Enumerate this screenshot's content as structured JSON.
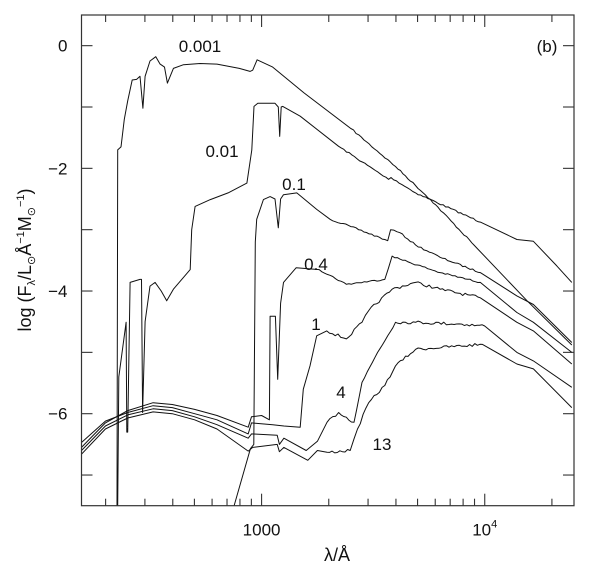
{
  "chart_data": {
    "type": "line",
    "panel_label": "(b)",
    "xlabel": "λ/Å",
    "ylabel": {
      "prefix": "log (F",
      "sub1": "λ",
      "mid1": "/L",
      "sun1": "⊙",
      "mid2": "Å",
      "sup1": "−1",
      "mid3": "M",
      "sun2": "⊙",
      "sup2": "−1",
      "suffix": ")"
    },
    "x_scale": "log",
    "xlim_log10": [
      2.193,
      4.4
    ],
    "ylim": [
      -7.5,
      0.5
    ],
    "grid": false,
    "yticks": [
      {
        "value": 0,
        "label": "0"
      },
      {
        "value": -2,
        "label": "−2"
      },
      {
        "value": -4,
        "label": "−4"
      },
      {
        "value": -6,
        "label": "−6"
      }
    ],
    "yminor": [
      -1,
      -3,
      -5,
      -7
    ],
    "xticks": [
      {
        "value": 1000,
        "label": "1000",
        "exp": ""
      },
      {
        "value": 10000,
        "label": "10",
        "exp": "4"
      }
    ],
    "xminor": [
      200,
      300,
      400,
      500,
      600,
      700,
      800,
      900,
      2000,
      3000,
      4000,
      5000,
      6000,
      7000,
      8000,
      9000,
      20000
    ],
    "series": [
      {
        "name": "0.001",
        "points_log10lambda_logF": [
          [
            2.352,
            -7.5
          ],
          [
            2.355,
            -1.7
          ],
          [
            2.37,
            -1.65
          ],
          [
            2.385,
            -1.2
          ],
          [
            2.4,
            -0.9
          ],
          [
            2.42,
            -0.56
          ],
          [
            2.44,
            -0.55
          ],
          [
            2.455,
            -0.5
          ],
          [
            2.468,
            -1.02
          ],
          [
            2.478,
            -0.5
          ],
          [
            2.5,
            -0.25
          ],
          [
            2.526,
            -0.18
          ],
          [
            2.545,
            -0.3
          ],
          [
            2.565,
            -0.35
          ],
          [
            2.578,
            -0.61
          ],
          [
            2.605,
            -0.37
          ],
          [
            2.65,
            -0.31
          ],
          [
            2.724,
            -0.29
          ],
          [
            2.8,
            -0.3
          ],
          [
            2.9,
            -0.37
          ],
          [
            2.948,
            -0.42
          ],
          [
            2.96,
            -0.4
          ],
          [
            2.98,
            -0.23
          ],
          [
            3.05,
            -0.35
          ],
          [
            3.19,
            -0.77
          ],
          [
            3.4,
            -1.35
          ],
          [
            3.6,
            -1.97
          ],
          [
            3.757,
            -2.51
          ],
          [
            3.965,
            -3.3
          ],
          [
            4.19,
            -4.16
          ],
          [
            4.39,
            -4.88
          ]
        ]
      },
      {
        "name": "0.01",
        "points_log10lambda_logF": [
          [
            2.355,
            -7.5
          ],
          [
            2.36,
            -5.4
          ],
          [
            2.393,
            -4.51
          ],
          [
            2.396,
            -6.3
          ],
          [
            2.4,
            -6.3
          ],
          [
            2.411,
            -3.86
          ],
          [
            2.455,
            -3.81
          ],
          [
            2.462,
            -3.81
          ],
          [
            2.467,
            -5.98
          ],
          [
            2.478,
            -4.5
          ],
          [
            2.5,
            -3.92
          ],
          [
            2.523,
            -3.86
          ],
          [
            2.55,
            -4.0
          ],
          [
            2.575,
            -4.16
          ],
          [
            2.605,
            -3.97
          ],
          [
            2.68,
            -3.65
          ],
          [
            2.687,
            -3.0
          ],
          [
            2.702,
            -2.62
          ],
          [
            2.77,
            -2.51
          ],
          [
            2.85,
            -2.4
          ],
          [
            2.934,
            -2.24
          ],
          [
            2.956,
            -1.7
          ],
          [
            2.966,
            -0.99
          ],
          [
            2.983,
            -0.94
          ],
          [
            3.06,
            -0.94
          ],
          [
            3.075,
            -1.0
          ],
          [
            3.081,
            -1.48
          ],
          [
            3.088,
            -1.0
          ],
          [
            3.095,
            -0.99
          ],
          [
            3.173,
            -1.15
          ],
          [
            3.345,
            -1.64
          ],
          [
            3.569,
            -2.18
          ],
          [
            3.58,
            -2.15
          ],
          [
            3.69,
            -2.4
          ],
          [
            3.983,
            -2.88
          ],
          [
            4.144,
            -3.16
          ],
          [
            4.218,
            -3.19
          ],
          [
            4.323,
            -3.59
          ],
          [
            4.39,
            -3.86
          ]
        ]
      },
      {
        "name": "0.1",
        "points_log10lambda_logF": [
          [
            2.877,
            -7.5
          ],
          [
            2.95,
            -6.57
          ],
          [
            2.965,
            -6.5
          ],
          [
            2.972,
            -3.2
          ],
          [
            2.978,
            -2.83
          ],
          [
            3.008,
            -2.51
          ],
          [
            3.038,
            -2.46
          ],
          [
            3.06,
            -2.5
          ],
          [
            3.075,
            -2.97
          ],
          [
            3.085,
            -2.5
          ],
          [
            3.098,
            -2.43
          ],
          [
            3.158,
            -2.4
          ],
          [
            3.247,
            -2.67
          ],
          [
            3.307,
            -2.83
          ],
          [
            3.4,
            -2.95
          ],
          [
            3.552,
            -3.16
          ],
          [
            3.565,
            -3.18
          ],
          [
            3.578,
            -3.0
          ],
          [
            3.62,
            -3.05
          ],
          [
            3.69,
            -3.25
          ],
          [
            3.8,
            -3.45
          ],
          [
            3.98,
            -3.7
          ],
          [
            4.144,
            -4.08
          ],
          [
            4.218,
            -4.22
          ],
          [
            4.39,
            -4.84
          ]
        ]
      },
      {
        "name": "0.4",
        "points_log10lambda_logF": [
          [
            2.193,
            -6.55
          ],
          [
            2.3,
            -6.15
          ],
          [
            2.4,
            -5.95
          ],
          [
            2.514,
            -5.82
          ],
          [
            2.6,
            -5.85
          ],
          [
            2.7,
            -5.93
          ],
          [
            2.8,
            -6.03
          ],
          [
            2.94,
            -6.22
          ],
          [
            2.955,
            -6.05
          ],
          [
            3.0,
            -6.03
          ],
          [
            3.035,
            -6.1
          ],
          [
            3.038,
            -4.41
          ],
          [
            3.062,
            -4.41
          ],
          [
            3.072,
            -5.44
          ],
          [
            3.085,
            -4.2
          ],
          [
            3.098,
            -3.86
          ],
          [
            3.155,
            -3.62
          ],
          [
            3.258,
            -3.65
          ],
          [
            3.38,
            -3.89
          ],
          [
            3.552,
            -3.81
          ],
          [
            3.585,
            -3.43
          ],
          [
            3.62,
            -3.48
          ],
          [
            3.8,
            -3.7
          ],
          [
            3.98,
            -3.86
          ],
          [
            4.144,
            -4.35
          ],
          [
            4.218,
            -4.51
          ],
          [
            4.39,
            -5.0
          ]
        ]
      },
      {
        "name": "1",
        "points_log10lambda_logF": [
          [
            2.193,
            -6.47
          ],
          [
            2.3,
            -6.12
          ],
          [
            2.4,
            -5.98
          ],
          [
            2.514,
            -5.87
          ],
          [
            2.6,
            -5.9
          ],
          [
            2.7,
            -6.0
          ],
          [
            2.8,
            -6.1
          ],
          [
            2.94,
            -6.33
          ],
          [
            2.955,
            -6.15
          ],
          [
            3.05,
            -6.18
          ],
          [
            3.1,
            -6.2
          ],
          [
            3.173,
            -6.22
          ],
          [
            3.187,
            -5.6
          ],
          [
            3.217,
            -5.22
          ],
          [
            3.247,
            -4.73
          ],
          [
            3.292,
            -4.65
          ],
          [
            3.38,
            -4.78
          ],
          [
            3.45,
            -4.51
          ],
          [
            3.48,
            -4.32
          ],
          [
            3.585,
            -3.97
          ],
          [
            3.69,
            -3.86
          ],
          [
            3.8,
            -3.97
          ],
          [
            3.98,
            -4.11
          ],
          [
            4.144,
            -4.51
          ],
          [
            4.218,
            -4.65
          ],
          [
            4.39,
            -5.19
          ]
        ]
      },
      {
        "name": "4",
        "points_log10lambda_logF": [
          [
            2.193,
            -6.6
          ],
          [
            2.3,
            -6.2
          ],
          [
            2.4,
            -6.02
          ],
          [
            2.514,
            -5.92
          ],
          [
            2.6,
            -5.95
          ],
          [
            2.7,
            -6.05
          ],
          [
            2.8,
            -6.18
          ],
          [
            2.94,
            -6.4
          ],
          [
            2.955,
            -6.33
          ],
          [
            3.07,
            -6.35
          ],
          [
            3.08,
            -6.5
          ],
          [
            3.1,
            -6.4
          ],
          [
            3.2,
            -6.6
          ],
          [
            3.25,
            -6.45
          ],
          [
            3.293,
            -6.14
          ],
          [
            3.345,
            -5.98
          ],
          [
            3.414,
            -6.14
          ],
          [
            3.45,
            -5.49
          ],
          [
            3.52,
            -5.0
          ],
          [
            3.6,
            -4.51
          ],
          [
            3.69,
            -4.51
          ],
          [
            3.897,
            -4.54
          ],
          [
            4.0,
            -4.57
          ],
          [
            4.144,
            -5.0
          ],
          [
            4.218,
            -5.14
          ],
          [
            4.39,
            -5.57
          ]
        ]
      },
      {
        "name": "13",
        "points_log10lambda_logF": [
          [
            2.193,
            -6.66
          ],
          [
            2.3,
            -6.25
          ],
          [
            2.4,
            -6.07
          ],
          [
            2.514,
            -5.97
          ],
          [
            2.6,
            -6.0
          ],
          [
            2.7,
            -6.1
          ],
          [
            2.8,
            -6.25
          ],
          [
            2.94,
            -6.61
          ],
          [
            2.96,
            -6.55
          ],
          [
            3.07,
            -6.5
          ],
          [
            3.08,
            -6.62
          ],
          [
            3.1,
            -6.55
          ],
          [
            3.207,
            -6.76
          ],
          [
            3.25,
            -6.6
          ],
          [
            3.293,
            -6.63
          ],
          [
            3.397,
            -6.6
          ],
          [
            3.43,
            -6.25
          ],
          [
            3.48,
            -5.82
          ],
          [
            3.552,
            -5.54
          ],
          [
            3.6,
            -5.22
          ],
          [
            3.69,
            -4.95
          ],
          [
            3.99,
            -4.87
          ],
          [
            4.144,
            -5.19
          ],
          [
            4.218,
            -5.27
          ],
          [
            4.39,
            -5.9
          ]
        ]
      }
    ]
  }
}
